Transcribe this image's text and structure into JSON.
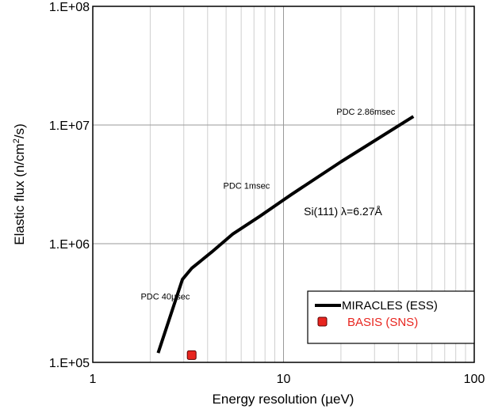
{
  "chart_data": {
    "type": "line",
    "title": "",
    "xlabel": "Energy resolution (µeV)",
    "ylabel_main": "Elastic flux (n/cm",
    "ylabel_sup": "2",
    "ylabel_tail": "/s)",
    "xscale": "log",
    "yscale": "log",
    "xlim": [
      1,
      100
    ],
    "ylim": [
      100000,
      100000000
    ],
    "x_ticks": [
      {
        "value": 1,
        "label": "1"
      },
      {
        "value": 10,
        "label": "10"
      },
      {
        "value": 100,
        "label": "100"
      }
    ],
    "y_ticks": [
      {
        "value": 100000,
        "label": "1.E+05"
      },
      {
        "value": 1000000,
        "label": "1.E+06"
      },
      {
        "value": 10000000,
        "label": "1.E+07"
      },
      {
        "value": 100000000,
        "label": "1.E+08"
      }
    ],
    "grid": true,
    "legend_position": "bottom-right",
    "series": [
      {
        "name": "MIRACLES (ESS)",
        "kind": "line",
        "color": "#000000",
        "x": [
          2.2,
          2.95,
          3.3,
          4.2,
          5.4,
          7.5,
          11,
          20,
          48
        ],
        "y": [
          120000,
          500000,
          620000,
          850000,
          1200000,
          1700000,
          2600000,
          4900000,
          11800000
        ]
      },
      {
        "name": "BASIS (SNS)",
        "kind": "marker",
        "color": "#e8251f",
        "x": [
          3.3
        ],
        "y": [
          115000
        ]
      }
    ],
    "annotations": [
      {
        "text": "PDC 2.86msec",
        "x": 27,
        "y": 13000000
      },
      {
        "text": "PDC 1msec",
        "x": 6.4,
        "y": 3100000
      },
      {
        "text": "Si(111) λ=6.27Å",
        "x": 20.5,
        "y": 1850000
      },
      {
        "text": "PDC 40µsec",
        "x": 2.4,
        "y": 360000
      }
    ]
  }
}
